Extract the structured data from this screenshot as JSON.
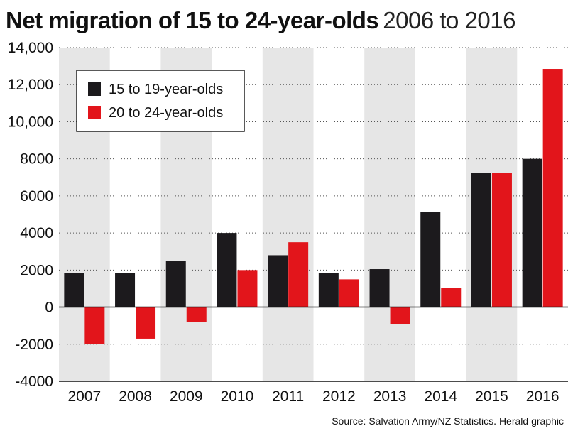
{
  "title": {
    "main": "Net migration of 15 to 24-year-olds",
    "sub": "2006 to 2016"
  },
  "source": "Source: Salvation Army/NZ Statistics. Herald graphic",
  "colors": {
    "series_1": "#1c1a1d",
    "series_2": "#e2151b",
    "band": "#e6e6e6"
  },
  "chart_data": {
    "type": "bar",
    "title": "Net migration of 15 to 24-year-olds 2006 to 2016",
    "xlabel": "",
    "ylabel": "",
    "ylim": [
      -4000,
      14000
    ],
    "ytick_step": 2000,
    "ytick_labels": [
      "-4000",
      "-2000",
      "0",
      "2000",
      "4000",
      "6000",
      "8000",
      "10,000",
      "12,000",
      "14,000"
    ],
    "legend_position": "top-left",
    "categories": [
      "2007",
      "2008",
      "2009",
      "2010",
      "2011",
      "2012",
      "2013",
      "2014",
      "2015",
      "2016"
    ],
    "series": [
      {
        "name": "15 to 19-year-olds",
        "values": [
          1850,
          1850,
          2500,
          4000,
          2800,
          1850,
          2050,
          5150,
          7250,
          8000
        ]
      },
      {
        "name": "20 to 24-year-olds",
        "values": [
          -2000,
          -1700,
          -800,
          2000,
          3500,
          1500,
          -900,
          1050,
          7250,
          12850
        ]
      }
    ]
  }
}
